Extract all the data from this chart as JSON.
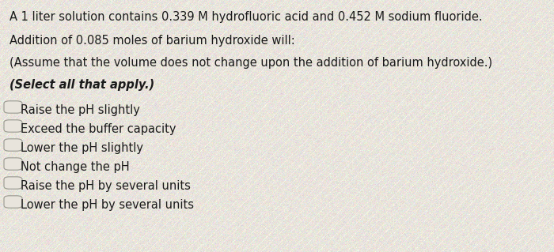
{
  "background_color": "#e8e4dc",
  "text_color": "#1a1a1a",
  "line1": "A 1 liter solution contains 0.339 M hydrofluoric acid and 0.452 M sodium fluoride.",
  "line2": "Addition of 0.085 moles of barium hydroxide will:",
  "line3": "(Assume that the volume does not change upon the addition of barium hydroxide.)",
  "line4_italic": "(Select all that apply.)",
  "options": [
    "Raise the pH slightly",
    "Exceed the buffer capacity",
    "Lower the pH slightly",
    "Not change the pH",
    "Raise the pH by several units",
    "Lower the pH by several units"
  ],
  "font_size_main": 10.5,
  "font_size_options": 10.5,
  "checkbox_edge_color": "#999990",
  "fig_width": 7.0,
  "fig_height": 3.19
}
